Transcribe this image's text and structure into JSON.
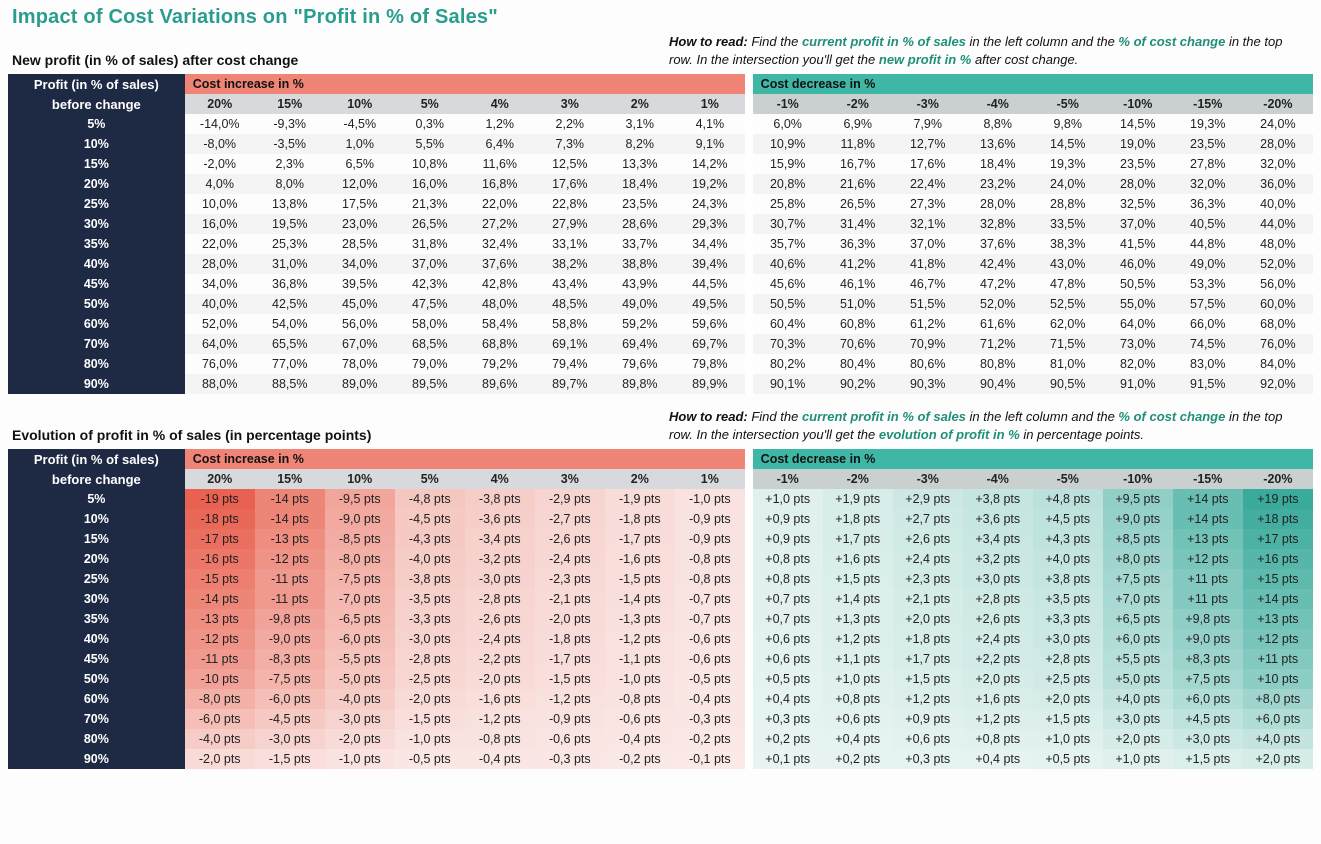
{
  "title": "Impact of Cost Variations on \"Profit in % of Sales\"",
  "title_color": "#2a9d8f",
  "accent_teal": "#2a9d8f",
  "accent_green_text": "#1f8f7a",
  "header_row_bg": "#1e2a44",
  "increase_header_bg": "#f08577",
  "decrease_header_bg": "#3fb7a6",
  "col_header_increase_bg": "#d7d9dc",
  "col_header_decrease_bg": "#c9d0cf",
  "first_col_width_pct": 13.5,
  "data_col_width_pct": 5.35,
  "row_labels": [
    "5%",
    "10%",
    "15%",
    "20%",
    "25%",
    "30%",
    "35%",
    "40%",
    "45%",
    "50%",
    "60%",
    "70%",
    "80%",
    "90%"
  ],
  "increase_headers": [
    "20%",
    "15%",
    "10%",
    "5%",
    "4%",
    "3%",
    "2%",
    "1%"
  ],
  "decrease_headers": [
    "-1%",
    "-2%",
    "-3%",
    "-4%",
    "-5%",
    "-10%",
    "-15%",
    "-20%"
  ],
  "table1": {
    "subtitle": "New profit (in % of sales) after cost change",
    "howto_pre": "How to read:",
    "howto_text_1": " Find the ",
    "howto_key1": "current profit in % of sales",
    "howto_text_2": " in the left column and the ",
    "howto_key2": "% of cost change",
    "howto_text_3": " in the top row. In the intersection you'll get the ",
    "howto_key3": "new profit in %",
    "howto_text_4": " after cost change.",
    "corner_label_top": "Profit (in % of sales)",
    "corner_label_bottom": "before change",
    "increase_label": "Cost increase in %",
    "decrease_label": "Cost decrease in %",
    "rows_increase": [
      [
        "-14,0%",
        "-9,3%",
        "-4,5%",
        "0,3%",
        "1,2%",
        "2,2%",
        "3,1%",
        "4,1%"
      ],
      [
        "-8,0%",
        "-3,5%",
        "1,0%",
        "5,5%",
        "6,4%",
        "7,3%",
        "8,2%",
        "9,1%"
      ],
      [
        "-2,0%",
        "2,3%",
        "6,5%",
        "10,8%",
        "11,6%",
        "12,5%",
        "13,3%",
        "14,2%"
      ],
      [
        "4,0%",
        "8,0%",
        "12,0%",
        "16,0%",
        "16,8%",
        "17,6%",
        "18,4%",
        "19,2%"
      ],
      [
        "10,0%",
        "13,8%",
        "17,5%",
        "21,3%",
        "22,0%",
        "22,8%",
        "23,5%",
        "24,3%"
      ],
      [
        "16,0%",
        "19,5%",
        "23,0%",
        "26,5%",
        "27,2%",
        "27,9%",
        "28,6%",
        "29,3%"
      ],
      [
        "22,0%",
        "25,3%",
        "28,5%",
        "31,8%",
        "32,4%",
        "33,1%",
        "33,7%",
        "34,4%"
      ],
      [
        "28,0%",
        "31,0%",
        "34,0%",
        "37,0%",
        "37,6%",
        "38,2%",
        "38,8%",
        "39,4%"
      ],
      [
        "34,0%",
        "36,8%",
        "39,5%",
        "42,3%",
        "42,8%",
        "43,4%",
        "43,9%",
        "44,5%"
      ],
      [
        "40,0%",
        "42,5%",
        "45,0%",
        "47,5%",
        "48,0%",
        "48,5%",
        "49,0%",
        "49,5%"
      ],
      [
        "52,0%",
        "54,0%",
        "56,0%",
        "58,0%",
        "58,4%",
        "58,8%",
        "59,2%",
        "59,6%"
      ],
      [
        "64,0%",
        "65,5%",
        "67,0%",
        "68,5%",
        "68,8%",
        "69,1%",
        "69,4%",
        "69,7%"
      ],
      [
        "76,0%",
        "77,0%",
        "78,0%",
        "79,0%",
        "79,2%",
        "79,4%",
        "79,6%",
        "79,8%"
      ],
      [
        "88,0%",
        "88,5%",
        "89,0%",
        "89,5%",
        "89,6%",
        "89,7%",
        "89,8%",
        "89,9%"
      ]
    ],
    "rows_decrease": [
      [
        "6,0%",
        "6,9%",
        "7,9%",
        "8,8%",
        "9,8%",
        "14,5%",
        "19,3%",
        "24,0%"
      ],
      [
        "10,9%",
        "11,8%",
        "12,7%",
        "13,6%",
        "14,5%",
        "19,0%",
        "23,5%",
        "28,0%"
      ],
      [
        "15,9%",
        "16,7%",
        "17,6%",
        "18,4%",
        "19,3%",
        "23,5%",
        "27,8%",
        "32,0%"
      ],
      [
        "20,8%",
        "21,6%",
        "22,4%",
        "23,2%",
        "24,0%",
        "28,0%",
        "32,0%",
        "36,0%"
      ],
      [
        "25,8%",
        "26,5%",
        "27,3%",
        "28,0%",
        "28,8%",
        "32,5%",
        "36,3%",
        "40,0%"
      ],
      [
        "30,7%",
        "31,4%",
        "32,1%",
        "32,8%",
        "33,5%",
        "37,0%",
        "40,5%",
        "44,0%"
      ],
      [
        "35,7%",
        "36,3%",
        "37,0%",
        "37,6%",
        "38,3%",
        "41,5%",
        "44,8%",
        "48,0%"
      ],
      [
        "40,6%",
        "41,2%",
        "41,8%",
        "42,4%",
        "43,0%",
        "46,0%",
        "49,0%",
        "52,0%"
      ],
      [
        "45,6%",
        "46,1%",
        "46,7%",
        "47,2%",
        "47,8%",
        "50,5%",
        "53,3%",
        "56,0%"
      ],
      [
        "50,5%",
        "51,0%",
        "51,5%",
        "52,0%",
        "52,5%",
        "55,0%",
        "57,5%",
        "60,0%"
      ],
      [
        "60,4%",
        "60,8%",
        "61,2%",
        "61,6%",
        "62,0%",
        "64,0%",
        "66,0%",
        "68,0%"
      ],
      [
        "70,3%",
        "70,6%",
        "70,9%",
        "71,2%",
        "71,5%",
        "73,0%",
        "74,5%",
        "76,0%"
      ],
      [
        "80,2%",
        "80,4%",
        "80,6%",
        "80,8%",
        "81,0%",
        "82,0%",
        "83,0%",
        "84,0%"
      ],
      [
        "90,1%",
        "90,2%",
        "90,3%",
        "90,4%",
        "90,5%",
        "91,0%",
        "91,5%",
        "92,0%"
      ]
    ]
  },
  "table2": {
    "subtitle": "Evolution of profit in % of sales (in percentage points)",
    "howto_pre": "How to read:",
    "howto_text_1": " Find the ",
    "howto_key1": "current profit in % of sales",
    "howto_text_2": " in the left column and the ",
    "howto_key2": "% of cost change",
    "howto_text_3": " in the top row. In the intersection you'll get the ",
    "howto_key3": "evolution of profit in %",
    "howto_text_4": " in percentage points.",
    "corner_label_top": "Profit (in % of sales)",
    "corner_label_bottom": "before change",
    "increase_label": "Cost increase in %",
    "decrease_label": "Cost decrease in %",
    "heatmap_neg_color": "#e85c4a",
    "heatmap_pos_color": "#2fa695",
    "heatmap_neg_max": 19,
    "heatmap_pos_max": 19,
    "rows_increase": [
      [
        "-19 pts",
        "-14 pts",
        "-9,5 pts",
        "-4,8 pts",
        "-3,8 pts",
        "-2,9 pts",
        "-1,9 pts",
        "-1,0 pts"
      ],
      [
        "-18 pts",
        "-14 pts",
        "-9,0 pts",
        "-4,5 pts",
        "-3,6 pts",
        "-2,7 pts",
        "-1,8 pts",
        "-0,9 pts"
      ],
      [
        "-17 pts",
        "-13 pts",
        "-8,5 pts",
        "-4,3 pts",
        "-3,4 pts",
        "-2,6 pts",
        "-1,7 pts",
        "-0,9 pts"
      ],
      [
        "-16 pts",
        "-12 pts",
        "-8,0 pts",
        "-4,0 pts",
        "-3,2 pts",
        "-2,4 pts",
        "-1,6 pts",
        "-0,8 pts"
      ],
      [
        "-15 pts",
        "-11 pts",
        "-7,5 pts",
        "-3,8 pts",
        "-3,0 pts",
        "-2,3 pts",
        "-1,5 pts",
        "-0,8 pts"
      ],
      [
        "-14 pts",
        "-11 pts",
        "-7,0 pts",
        "-3,5 pts",
        "-2,8 pts",
        "-2,1 pts",
        "-1,4 pts",
        "-0,7 pts"
      ],
      [
        "-13 pts",
        "-9,8 pts",
        "-6,5 pts",
        "-3,3 pts",
        "-2,6 pts",
        "-2,0 pts",
        "-1,3 pts",
        "-0,7 pts"
      ],
      [
        "-12 pts",
        "-9,0 pts",
        "-6,0 pts",
        "-3,0 pts",
        "-2,4 pts",
        "-1,8 pts",
        "-1,2 pts",
        "-0,6 pts"
      ],
      [
        "-11 pts",
        "-8,3 pts",
        "-5,5 pts",
        "-2,8 pts",
        "-2,2 pts",
        "-1,7 pts",
        "-1,1 pts",
        "-0,6 pts"
      ],
      [
        "-10 pts",
        "-7,5 pts",
        "-5,0 pts",
        "-2,5 pts",
        "-2,0 pts",
        "-1,5 pts",
        "-1,0 pts",
        "-0,5 pts"
      ],
      [
        "-8,0 pts",
        "-6,0 pts",
        "-4,0 pts",
        "-2,0 pts",
        "-1,6 pts",
        "-1,2 pts",
        "-0,8 pts",
        "-0,4 pts"
      ],
      [
        "-6,0 pts",
        "-4,5 pts",
        "-3,0 pts",
        "-1,5 pts",
        "-1,2 pts",
        "-0,9 pts",
        "-0,6 pts",
        "-0,3 pts"
      ],
      [
        "-4,0 pts",
        "-3,0 pts",
        "-2,0 pts",
        "-1,0 pts",
        "-0,8 pts",
        "-0,6 pts",
        "-0,4 pts",
        "-0,2 pts"
      ],
      [
        "-2,0 pts",
        "-1,5 pts",
        "-1,0 pts",
        "-0,5 pts",
        "-0,4 pts",
        "-0,3 pts",
        "-0,2 pts",
        "-0,1 pts"
      ]
    ],
    "rows_decrease": [
      [
        "+1,0 pts",
        "+1,9 pts",
        "+2,9 pts",
        "+3,8 pts",
        "+4,8 pts",
        "+9,5 pts",
        "+14 pts",
        "+19 pts"
      ],
      [
        "+0,9 pts",
        "+1,8 pts",
        "+2,7 pts",
        "+3,6 pts",
        "+4,5 pts",
        "+9,0 pts",
        "+14 pts",
        "+18 pts"
      ],
      [
        "+0,9 pts",
        "+1,7 pts",
        "+2,6 pts",
        "+3,4 pts",
        "+4,3 pts",
        "+8,5 pts",
        "+13 pts",
        "+17 pts"
      ],
      [
        "+0,8 pts",
        "+1,6 pts",
        "+2,4 pts",
        "+3,2 pts",
        "+4,0 pts",
        "+8,0 pts",
        "+12 pts",
        "+16 pts"
      ],
      [
        "+0,8 pts",
        "+1,5 pts",
        "+2,3 pts",
        "+3,0 pts",
        "+3,8 pts",
        "+7,5 pts",
        "+11 pts",
        "+15 pts"
      ],
      [
        "+0,7 pts",
        "+1,4 pts",
        "+2,1 pts",
        "+2,8 pts",
        "+3,5 pts",
        "+7,0 pts",
        "+11 pts",
        "+14 pts"
      ],
      [
        "+0,7 pts",
        "+1,3 pts",
        "+2,0 pts",
        "+2,6 pts",
        "+3,3 pts",
        "+6,5 pts",
        "+9,8 pts",
        "+13 pts"
      ],
      [
        "+0,6 pts",
        "+1,2 pts",
        "+1,8 pts",
        "+2,4 pts",
        "+3,0 pts",
        "+6,0 pts",
        "+9,0 pts",
        "+12 pts"
      ],
      [
        "+0,6 pts",
        "+1,1 pts",
        "+1,7 pts",
        "+2,2 pts",
        "+2,8 pts",
        "+5,5 pts",
        "+8,3 pts",
        "+11 pts"
      ],
      [
        "+0,5 pts",
        "+1,0 pts",
        "+1,5 pts",
        "+2,0 pts",
        "+2,5 pts",
        "+5,0 pts",
        "+7,5 pts",
        "+10 pts"
      ],
      [
        "+0,4 pts",
        "+0,8 pts",
        "+1,2 pts",
        "+1,6 pts",
        "+2,0 pts",
        "+4,0 pts",
        "+6,0 pts",
        "+8,0 pts"
      ],
      [
        "+0,3 pts",
        "+0,6 pts",
        "+0,9 pts",
        "+1,2 pts",
        "+1,5 pts",
        "+3,0 pts",
        "+4,5 pts",
        "+6,0 pts"
      ],
      [
        "+0,2 pts",
        "+0,4 pts",
        "+0,6 pts",
        "+0,8 pts",
        "+1,0 pts",
        "+2,0 pts",
        "+3,0 pts",
        "+4,0 pts"
      ],
      [
        "+0,1 pts",
        "+0,2 pts",
        "+0,3 pts",
        "+0,4 pts",
        "+0,5 pts",
        "+1,0 pts",
        "+1,5 pts",
        "+2,0 pts"
      ]
    ]
  }
}
